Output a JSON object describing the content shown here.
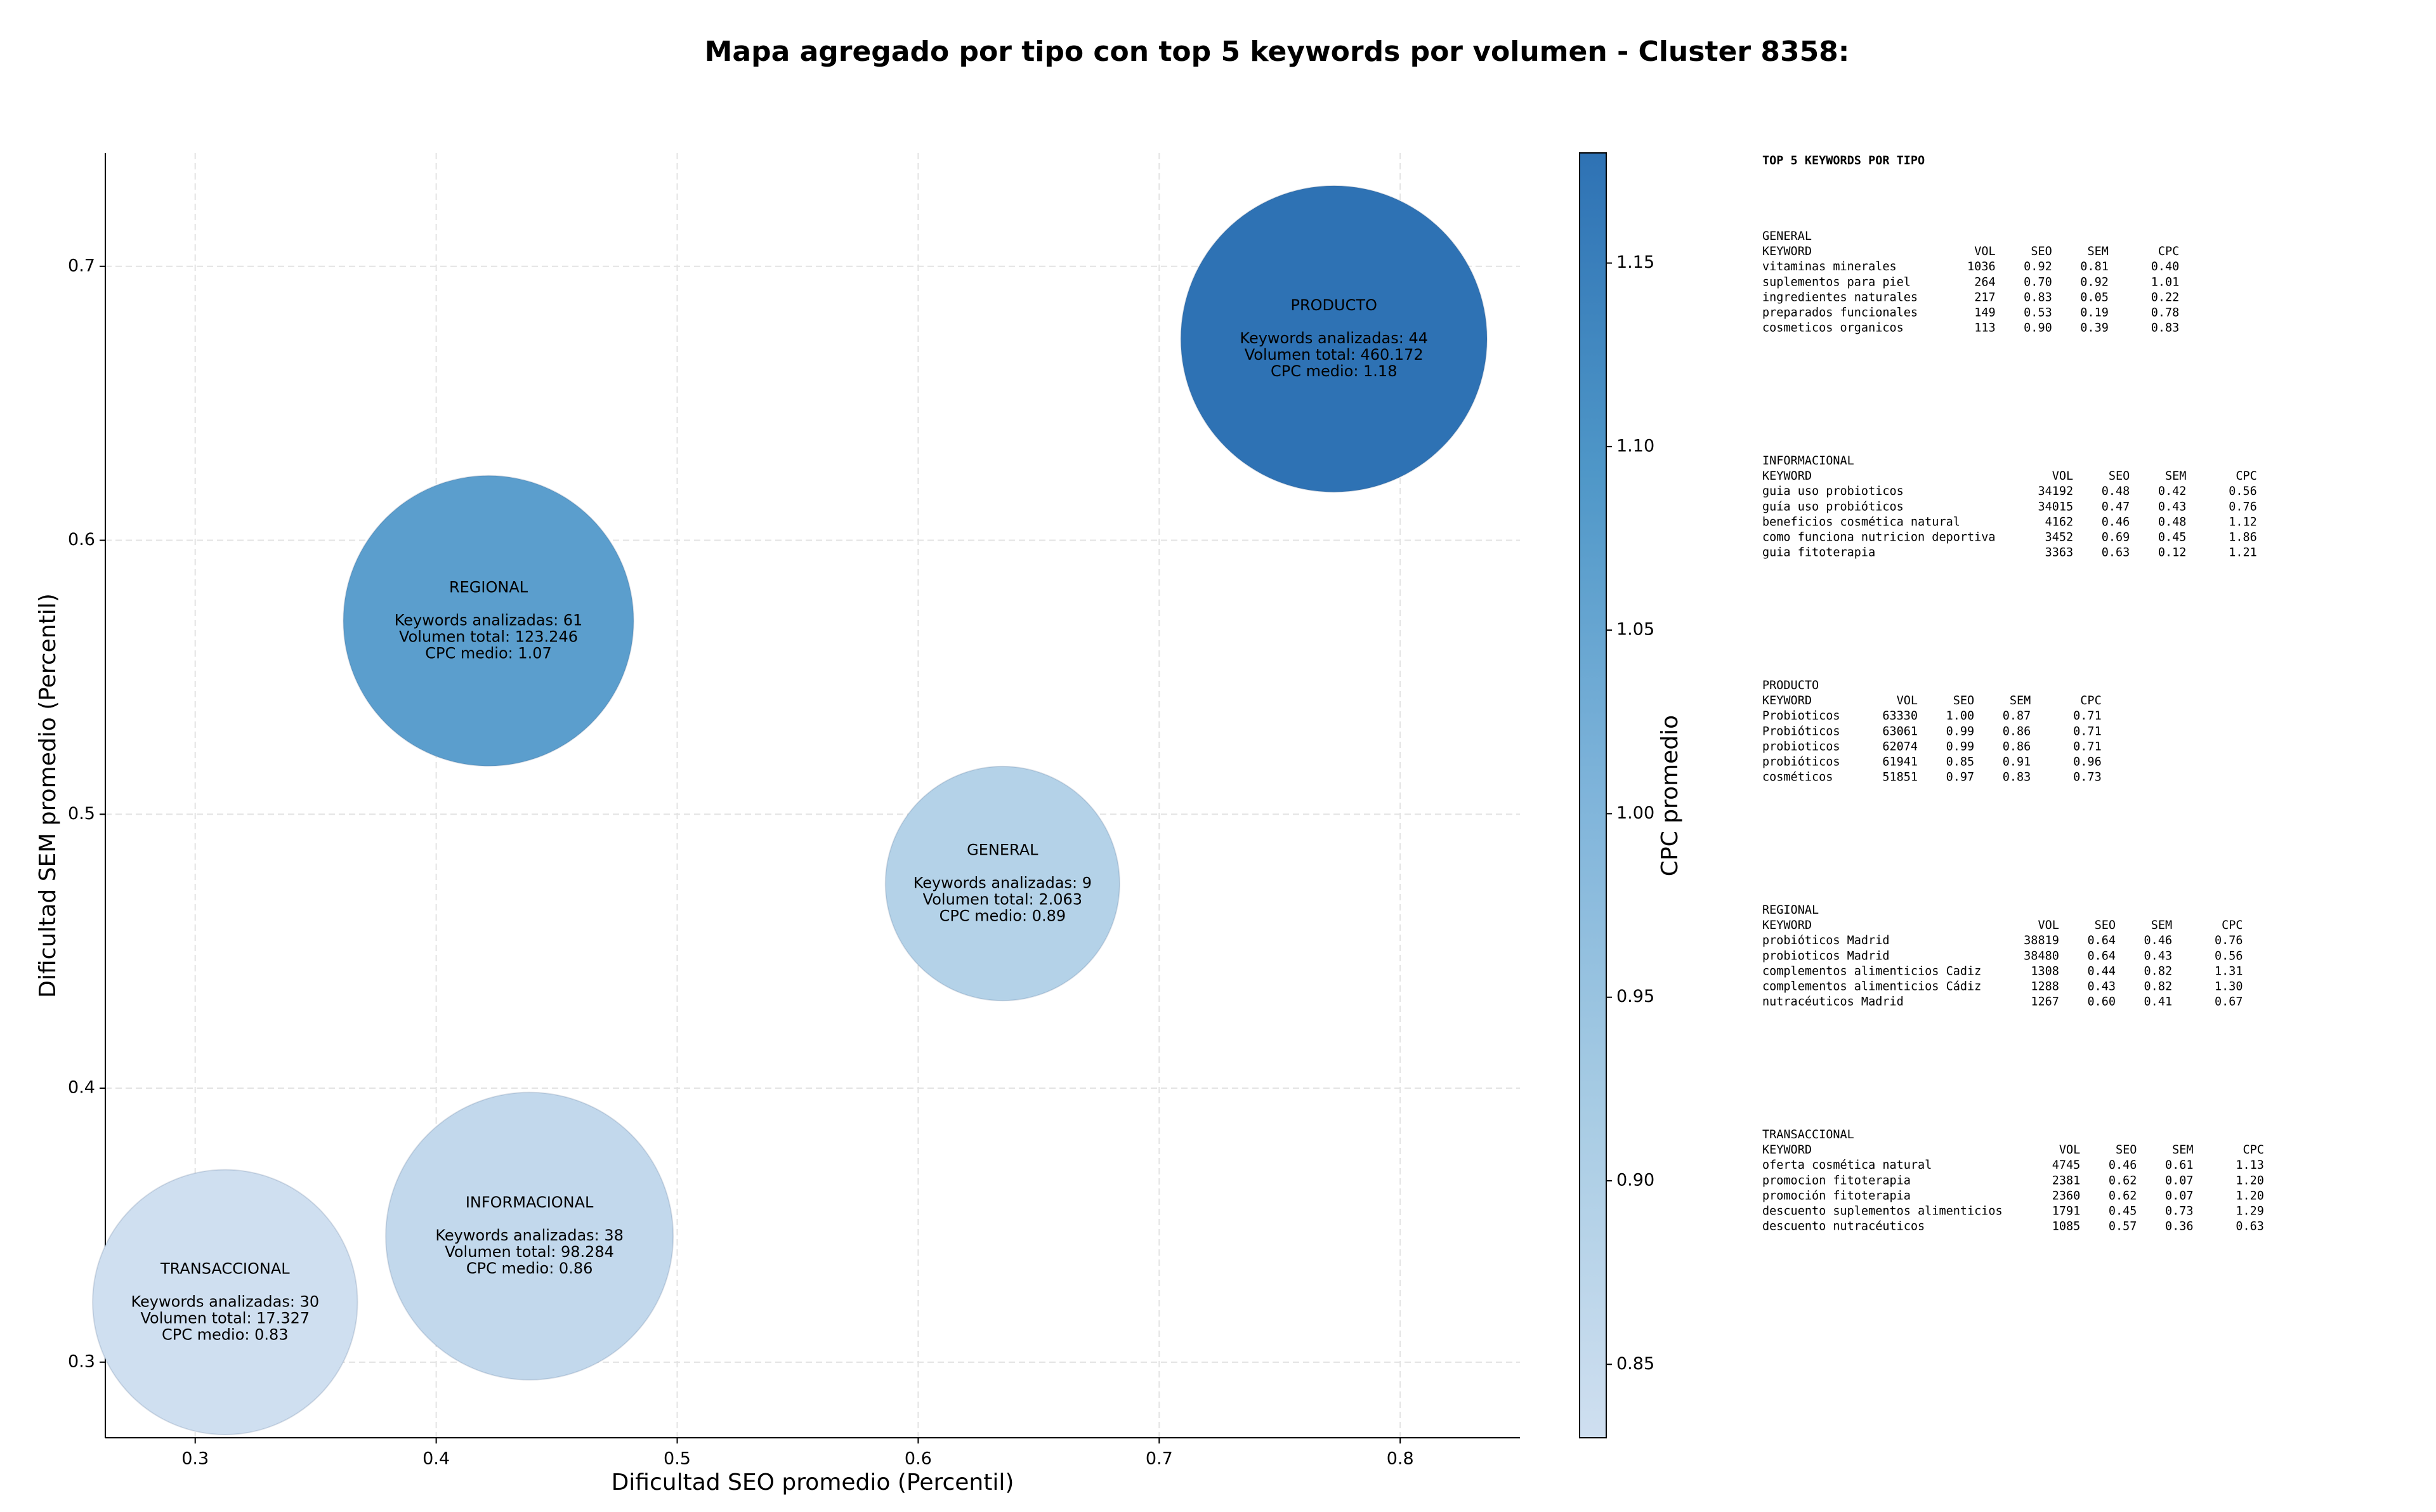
{
  "chart_data": {
    "type": "bubble",
    "title": "Mapa agregado por tipo con top 5 keywords por volumen - Cluster 8358:",
    "x_label": "Dificultad SEO promedio (Percentil)",
    "y_label": "Dificultad SEM promedio (Percentil)",
    "colorbar_label": "CPC promedio",
    "xlim": [
      0.2627,
      0.8497
    ],
    "ylim": [
      0.2724,
      0.7414
    ],
    "xticks": [
      0.3,
      0.4,
      0.5,
      0.6,
      0.7,
      0.8
    ],
    "yticks": [
      0.3,
      0.4,
      0.5,
      0.6,
      0.7
    ],
    "clim": [
      0.83,
      1.18
    ],
    "cticks": [
      0.85,
      {
        "value": 0.9,
        "label": "0.90"
      },
      0.95,
      {
        "value": 1.0,
        "label": "1.00"
      },
      1.05,
      {
        "value": 1.1,
        "label": "1.10"
      },
      1.15
    ],
    "colormap": [
      "#cfdff0",
      "#a8cce4",
      "#7fb4da",
      "#4f97c8",
      "#2e72b4"
    ],
    "grid": true,
    "points": [
      {
        "name": "PRODUCTO",
        "x": 0.7725,
        "y": 0.6735,
        "volume": 460172,
        "cpc": 1.18,
        "labels": [
          "Keywords analizadas: 44",
          "Volumen total: 460.172",
          "CPC medio: 1.18"
        ]
      },
      {
        "name": "REGIONAL",
        "x": 0.4217,
        "y": 0.5706,
        "volume": 123246,
        "cpc": 1.07,
        "labels": [
          "Keywords analizadas: 61",
          "Volumen total: 123.246",
          "CPC medio: 1.07"
        ]
      },
      {
        "name": "GENERAL",
        "x": 0.635,
        "y": 0.4747,
        "volume": 2063,
        "cpc": 0.89,
        "labels": [
          "Keywords analizadas: 9",
          "Volumen total: 2.063",
          "CPC medio: 0.89"
        ]
      },
      {
        "name": "INFORMACIONAL",
        "x": 0.4387,
        "y": 0.346,
        "volume": 98284,
        "cpc": 0.86,
        "labels": [
          "Keywords analizadas: 38",
          "Volumen total: 98.284",
          "CPC medio: 0.86"
        ]
      },
      {
        "name": "TRANSACCIONAL",
        "x": 0.3124,
        "y": 0.3219,
        "volume": 17327,
        "cpc": 0.83,
        "labels": [
          "Keywords analizadas: 30",
          "Volumen total: 17.327",
          "CPC medio: 0.83"
        ]
      }
    ]
  },
  "keyword_panel": {
    "title": "TOP 5 KEYWORDS POR TIPO",
    "header": [
      "KEYWORD",
      "VOL",
      "SEO",
      "SEM",
      "CPC"
    ],
    "sections": [
      {
        "name": "GENERAL",
        "rows": [
          [
            "vitaminas minerales",
            "1036",
            "0.92",
            "0.81",
            "0.40"
          ],
          [
            "suplementos para piel",
            "264",
            "0.70",
            "0.92",
            "1.01"
          ],
          [
            "ingredientes naturales",
            "217",
            "0.83",
            "0.05",
            "0.22"
          ],
          [
            "preparados funcionales",
            "149",
            "0.53",
            "0.19",
            "0.78"
          ],
          [
            "cosmeticos organicos",
            "113",
            "0.90",
            "0.39",
            "0.83"
          ]
        ]
      },
      {
        "name": "INFORMACIONAL",
        "rows": [
          [
            "guia uso probioticos",
            "34192",
            "0.48",
            "0.42",
            "0.56"
          ],
          [
            "guía uso probióticos",
            "34015",
            "0.47",
            "0.43",
            "0.76"
          ],
          [
            "beneficios cosmética natural",
            "4162",
            "0.46",
            "0.48",
            "1.12"
          ],
          [
            "como funciona nutricion deportiva",
            "3452",
            "0.69",
            "0.45",
            "1.86"
          ],
          [
            "guia fitoterapia",
            "3363",
            "0.63",
            "0.12",
            "1.21"
          ]
        ]
      },
      {
        "name": "PRODUCTO",
        "rows": [
          [
            "Probioticos",
            "63330",
            "1.00",
            "0.87",
            "0.71"
          ],
          [
            "Probióticos",
            "63061",
            "0.99",
            "0.86",
            "0.71"
          ],
          [
            "probioticos",
            "62074",
            "0.99",
            "0.86",
            "0.71"
          ],
          [
            "probióticos",
            "61941",
            "0.85",
            "0.91",
            "0.96"
          ],
          [
            "cosméticos",
            "51851",
            "0.97",
            "0.83",
            "0.73"
          ]
        ]
      },
      {
        "name": "REGIONAL",
        "rows": [
          [
            "probióticos Madrid",
            "38819",
            "0.64",
            "0.46",
            "0.76"
          ],
          [
            "probioticos Madrid",
            "38480",
            "0.64",
            "0.43",
            "0.56"
          ],
          [
            "complementos alimenticios Cadiz",
            "1308",
            "0.44",
            "0.82",
            "1.31"
          ],
          [
            "complementos alimenticios Cádiz",
            "1288",
            "0.43",
            "0.82",
            "1.30"
          ],
          [
            "nutracéuticos Madrid",
            "1267",
            "0.60",
            "0.41",
            "0.67"
          ]
        ]
      },
      {
        "name": "TRANSACCIONAL",
        "rows": [
          [
            "oferta cosmética natural",
            "4745",
            "0.46",
            "0.61",
            "1.13"
          ],
          [
            "promocion fitoterapia",
            "2381",
            "0.62",
            "0.07",
            "1.20"
          ],
          [
            "promoción fitoterapia",
            "2360",
            "0.62",
            "0.07",
            "1.20"
          ],
          [
            "descuento suplementos alimenticios",
            "1791",
            "0.45",
            "0.73",
            "1.29"
          ],
          [
            "descuento nutracéuticos",
            "1085",
            "0.57",
            "0.36",
            "0.63"
          ]
        ]
      }
    ]
  }
}
